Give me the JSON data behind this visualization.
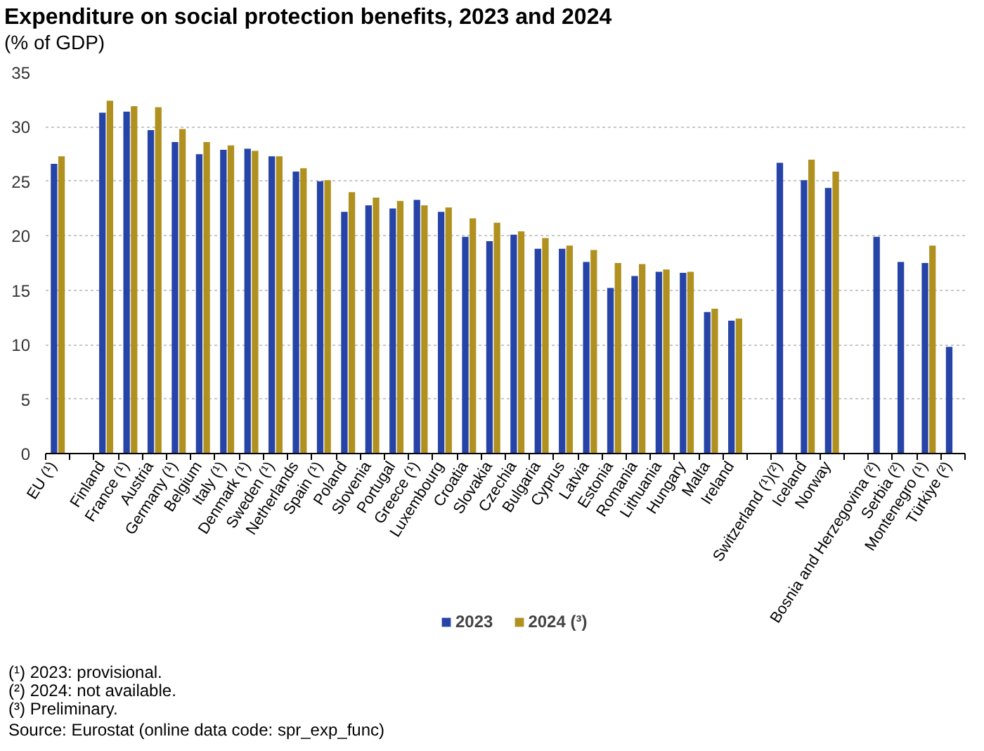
{
  "chart_data": {
    "type": "bar",
    "title": "Expenditure on social protection benefits, 2023 and 2024",
    "subtitle": "(% of GDP)",
    "categories": [
      "EU (¹)",
      null,
      "Finland",
      "France (¹)",
      "Austria",
      "Germany (¹)",
      "Belgium",
      "Italy (¹)",
      "Denmark (¹)",
      "Sweden (¹)",
      "Netherlands",
      "Spain (¹)",
      "Poland",
      "Slovenia",
      "Portugal",
      "Greece (¹)",
      "Luxembourg",
      "Croatia",
      "Slovakia",
      "Czechia",
      "Bulgaria",
      "Cyprus",
      "Latvia",
      "Estonia",
      "Romania",
      "Lithuania",
      "Hungary",
      "Malta",
      "Ireland",
      null,
      "Switzerland (¹)(²)",
      "Iceland",
      "Norway",
      null,
      "Bosnia and Herzegovina (²)",
      "Serbia (²)",
      "Montenegro (¹)",
      "Türkiye (²)"
    ],
    "series": [
      {
        "name": "2023",
        "color": "#2644a7",
        "values": [
          26.6,
          null,
          31.3,
          31.4,
          29.7,
          28.6,
          27.5,
          27.9,
          28.0,
          27.3,
          25.9,
          25.0,
          22.2,
          22.8,
          22.5,
          23.3,
          22.2,
          19.9,
          19.5,
          20.1,
          18.8,
          18.8,
          17.6,
          15.2,
          16.3,
          16.7,
          16.6,
          13.0,
          12.2,
          null,
          26.7,
          25.1,
          24.4,
          null,
          19.9,
          17.6,
          17.5,
          9.8
        ]
      },
      {
        "name": "2024 (³)",
        "color": "#b09120",
        "values": [
          27.3,
          null,
          32.4,
          31.9,
          31.8,
          29.8,
          28.6,
          28.3,
          27.8,
          27.3,
          26.2,
          25.1,
          24.0,
          23.5,
          23.2,
          22.8,
          22.6,
          21.6,
          21.2,
          20.4,
          19.8,
          19.1,
          18.7,
          17.5,
          17.4,
          16.9,
          16.7,
          13.3,
          12.4,
          null,
          null,
          27.0,
          25.9,
          null,
          null,
          null,
          19.1,
          null
        ]
      }
    ],
    "ylim": [
      0,
      35
    ],
    "yticks": [
      0,
      5,
      10,
      15,
      20,
      25,
      30,
      35
    ],
    "grid": "y",
    "legend": "bottom",
    "annotations": [
      "(¹) 2023: provisional.",
      "(²) 2024: not available.",
      "(³) Preliminary.",
      "Source: Eurostat (online data code: spr_exp_func)"
    ]
  }
}
